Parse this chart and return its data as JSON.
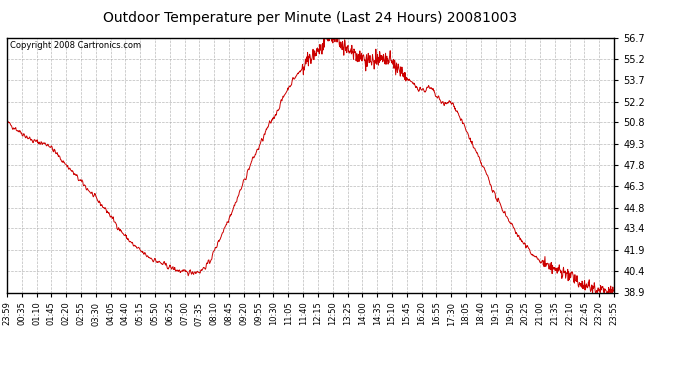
{
  "title": "Outdoor Temperature per Minute (Last 24 Hours) 20081003",
  "copyright_text": "Copyright 2008 Cartronics.com",
  "line_color": "#cc0000",
  "background_color": "#ffffff",
  "grid_color": "#aaaaaa",
  "yticks": [
    38.9,
    40.4,
    41.9,
    43.4,
    44.8,
    46.3,
    47.8,
    49.3,
    50.8,
    52.2,
    53.7,
    55.2,
    56.7
  ],
  "ymin": 38.9,
  "ymax": 56.7,
  "xtick_labels": [
    "23:59",
    "00:35",
    "01:10",
    "01:45",
    "02:20",
    "02:55",
    "03:30",
    "04:05",
    "04:40",
    "05:15",
    "05:50",
    "06:25",
    "07:00",
    "07:35",
    "08:10",
    "08:45",
    "09:20",
    "09:55",
    "10:30",
    "11:05",
    "11:40",
    "12:15",
    "12:50",
    "13:25",
    "14:00",
    "14:35",
    "15:10",
    "15:45",
    "16:20",
    "16:55",
    "17:30",
    "18:05",
    "18:40",
    "19:15",
    "19:50",
    "20:25",
    "21:00",
    "21:35",
    "22:10",
    "22:45",
    "23:20",
    "23:55"
  ],
  "figsize": [
    6.9,
    3.75
  ],
  "dpi": 100
}
